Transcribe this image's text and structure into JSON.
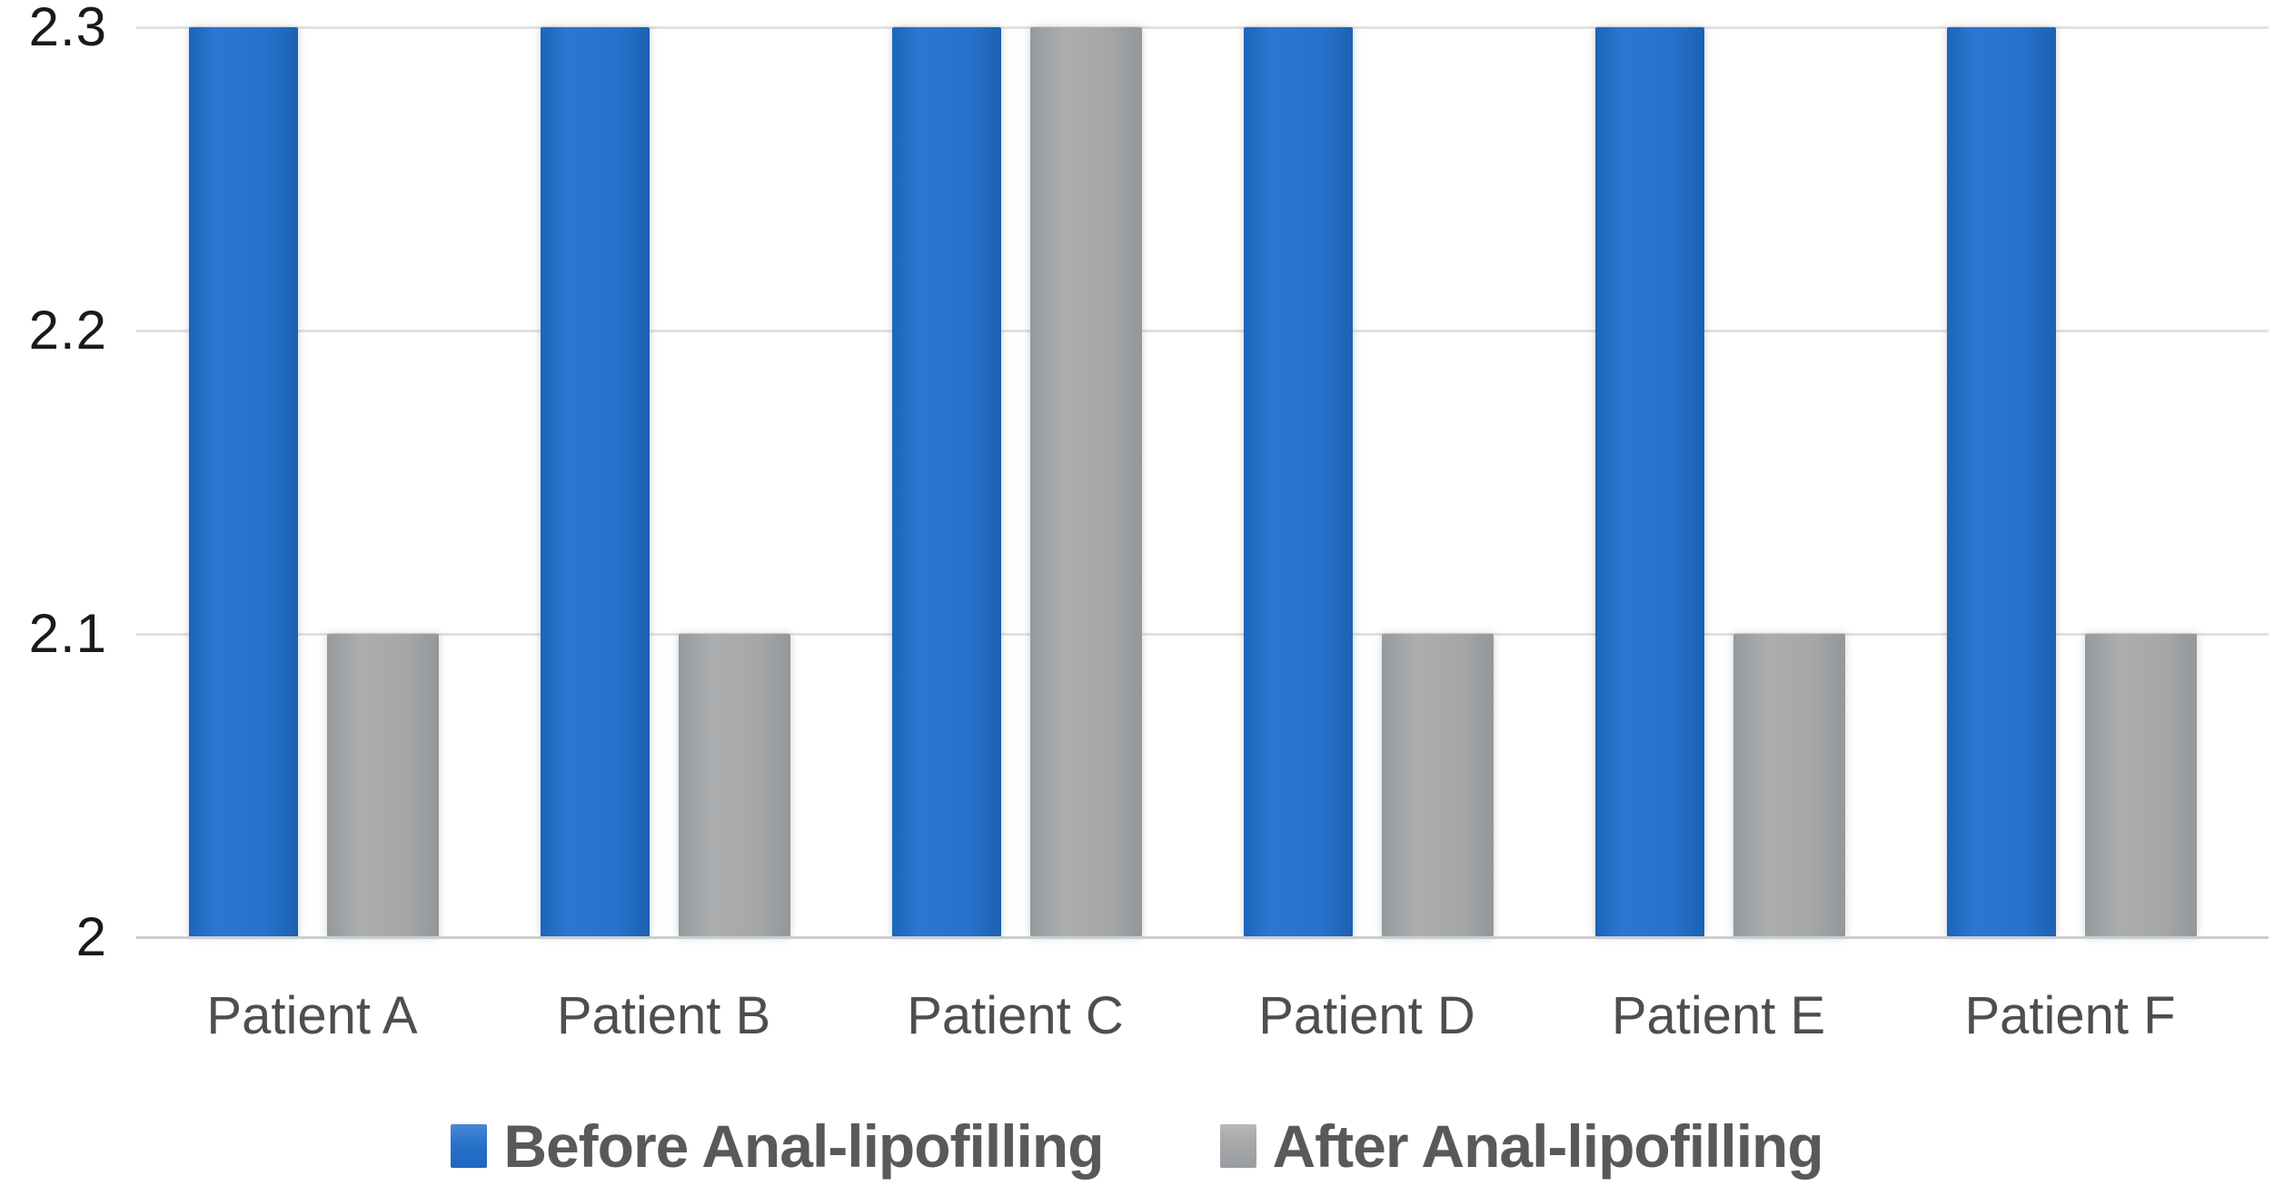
{
  "chart_data": {
    "type": "bar",
    "title": "",
    "xlabel": "",
    "ylabel": "",
    "categories": [
      "Patient A",
      "Patient B",
      "Patient C",
      "Patient D",
      "Patient E",
      "Patient F"
    ],
    "series": [
      {
        "name": "Before Anal-lipofilling",
        "color": "#2271c9",
        "values": [
          2.3,
          2.3,
          2.3,
          2.3,
          2.3,
          2.3
        ]
      },
      {
        "name": "After Anal-lipofilling",
        "color": "#a5a7a9",
        "values": [
          2.1,
          2.1,
          2.3,
          2.1,
          2.1,
          2.1
        ]
      }
    ],
    "ylim": [
      2,
      2.3
    ],
    "yticks": [
      2,
      2.1,
      2.2,
      2.3
    ],
    "ytick_labels": [
      "2",
      "2.1",
      "2.2",
      "2.3"
    ],
    "grid": "horizontal",
    "legend_position": "bottom",
    "gridline_color": "#dfe2e3",
    "axis_line_color": "#c9ced1"
  }
}
